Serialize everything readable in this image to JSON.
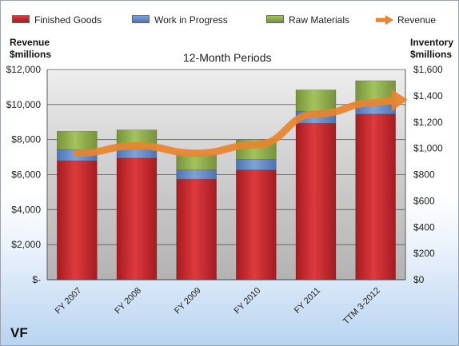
{
  "chart_data": {
    "type": "bar",
    "title": "12-Month Periods",
    "company": "VF",
    "categories": [
      "FY 2007",
      "FY 2008",
      "FY 2009",
      "FY 2010",
      "FY 2011",
      "TTM 3-2012"
    ],
    "series": [
      {
        "name": "Finished Goods",
        "axis": "right",
        "kind": "stacked-bar",
        "color": "#c9262b",
        "values": [
          905,
          925,
          765,
          835,
          1190,
          1260
        ]
      },
      {
        "name": "Work in Progress",
        "axis": "right",
        "kind": "stacked-bar",
        "color": "#5f86c6",
        "values": [
          85,
          70,
          70,
          80,
          90,
          90
        ]
      },
      {
        "name": "Raw Materials",
        "axis": "right",
        "kind": "stacked-bar",
        "color": "#8fb04a",
        "values": [
          140,
          145,
          120,
          150,
          165,
          165
        ]
      },
      {
        "name": "Revenue",
        "axis": "left",
        "kind": "line",
        "color": "#e8842e",
        "values": [
          7220,
          7640,
          7220,
          7700,
          9460,
          10100
        ]
      }
    ],
    "left_axis": {
      "label": "Revenue $millions",
      "min": 0,
      "max": 12000,
      "ticks": [
        "$-",
        "$2,000",
        "$4,000",
        "$6,000",
        "$8,000",
        "$10,000",
        "$12,000"
      ]
    },
    "right_axis": {
      "label": "Inventory $millions",
      "min": 0,
      "max": 1600,
      "ticks": [
        "$0",
        "$200",
        "$400",
        "$600",
        "$800",
        "$1,000",
        "$1,200",
        "$1,400",
        "$1,600"
      ]
    },
    "grid": true,
    "legend_position": "top"
  }
}
